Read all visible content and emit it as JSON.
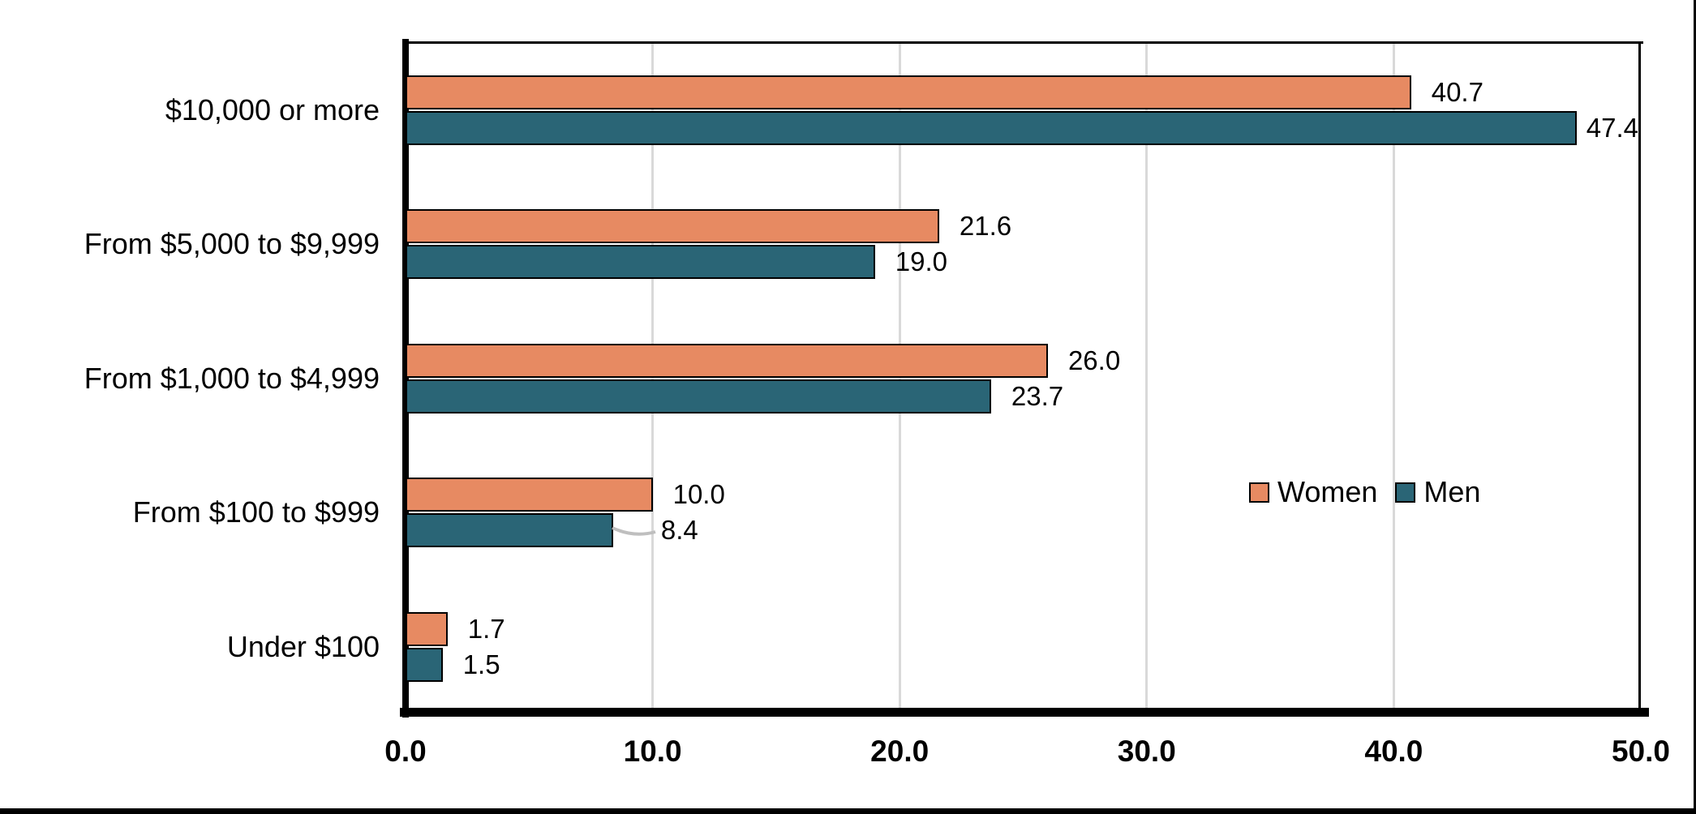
{
  "chart_data": {
    "type": "bar",
    "orientation": "horizontal",
    "title": "",
    "categories": [
      "$10,000 or more",
      "From $5,000 to $9,999",
      "From $1,000 to $4,999",
      "From $100 to $999",
      "Under $100"
    ],
    "series": [
      {
        "name": "Women",
        "color": "#E78A62",
        "values": [
          40.7,
          21.6,
          26.0,
          10.0,
          1.7
        ],
        "labels": [
          "40.7",
          "21.6",
          "26.0",
          "10.0",
          "1.7"
        ]
      },
      {
        "name": "Men",
        "color": "#2A6576",
        "values": [
          47.4,
          19.0,
          23.7,
          8.4,
          1.5
        ],
        "labels": [
          "47.4",
          "19.0",
          "23.7",
          "8.4",
          "1.5"
        ]
      }
    ],
    "x_axis": {
      "min": 0.0,
      "max": 50.0,
      "tick_step": 10.0,
      "tick_labels": [
        "0.0",
        "10.0",
        "20.0",
        "30.0",
        "40.0",
        "50.0"
      ]
    },
    "grid": true,
    "legend": {
      "position": "middle-right",
      "entries": [
        "Women",
        "Men"
      ]
    },
    "callout": {
      "series_index": 1,
      "category_index": 3,
      "value_label": "8.4",
      "leader_line_color": "#BFBFBF"
    }
  },
  "colors": {
    "background": "#FFFFFF",
    "axis": "#000000",
    "gridline": "#D9D9D9",
    "bar_outline": "#000000",
    "women": "#E78A62",
    "men": "#2A6576",
    "leader_line": "#BFBFBF",
    "window_edge": "#000000"
  }
}
